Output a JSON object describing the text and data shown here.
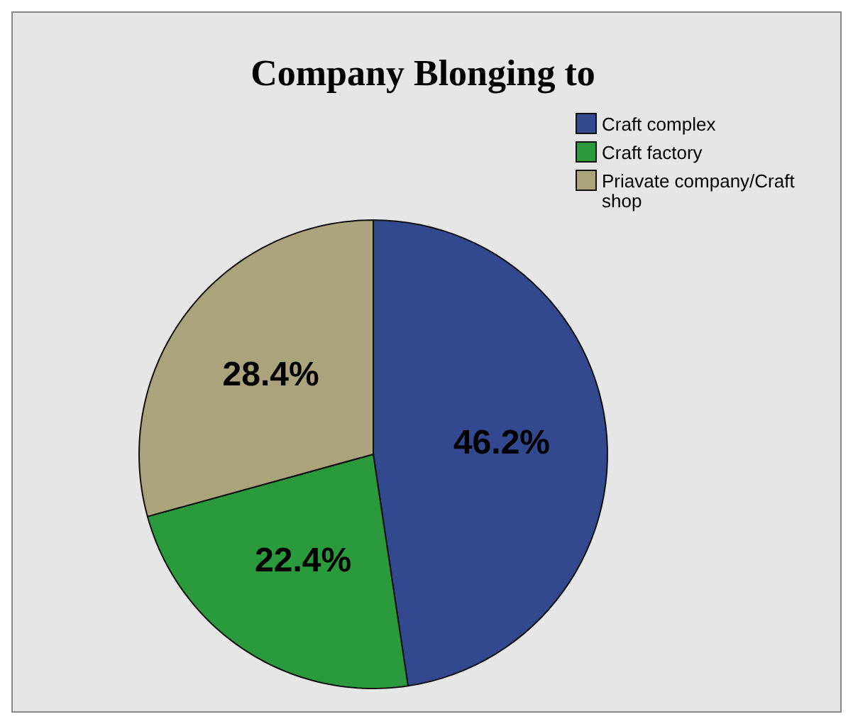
{
  "chart_data": {
    "type": "pie",
    "title": "Company Blonging to",
    "categories": [
      "Craft complex",
      "Craft factory",
      "Priavate company/Craft shop"
    ],
    "values": [
      46.2,
      22.4,
      28.4
    ],
    "colors": [
      "#33498f",
      "#2a9a3c",
      "#aaa37b"
    ],
    "value_labels": [
      "46.2%",
      "22.4%",
      "28.4%"
    ],
    "legend": "top right"
  }
}
